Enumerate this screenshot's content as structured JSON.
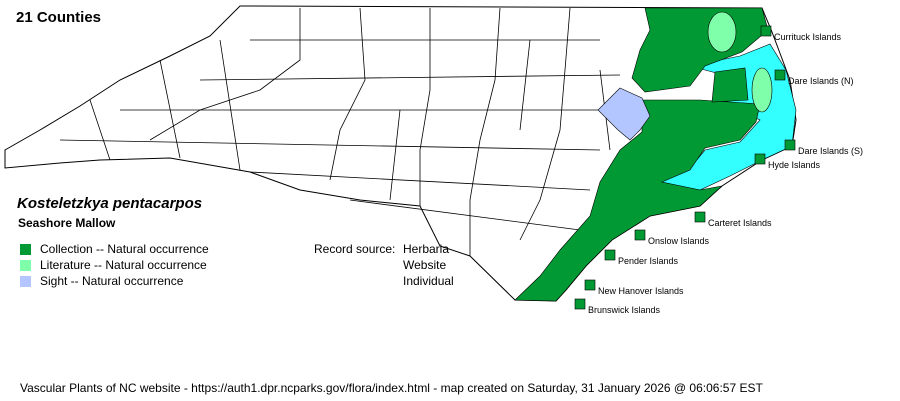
{
  "header": {
    "county_count": "21 Counties"
  },
  "species": {
    "scientific_name": "Kosteletzkya pentacarpos",
    "common_name": "Seashore Mallow"
  },
  "legend": [
    {
      "label": "Collection -- Natural occurrence",
      "color": "#009933"
    },
    {
      "label": "Literature -- Natural occurrence",
      "color": "#80ffaa"
    },
    {
      "label": "Sight -- Natural occurrence",
      "color": "#b3c6ff"
    }
  ],
  "record_source": {
    "label": "Record source:",
    "values": [
      "Herbaria",
      "Website",
      "Individual"
    ]
  },
  "islands": [
    "Currituck Islands",
    "Dare Islands (N)",
    "Dare Islands (S)",
    "Hyde Islands",
    "Carteret Islands",
    "Onslow Islands",
    "Pender Islands",
    "New Hanover Islands",
    "Brunswick Islands"
  ],
  "colors": {
    "collection": "#009933",
    "literature": "#80ffaa",
    "sight": "#b3c6ff",
    "water": "#33ffff"
  },
  "footer": "Vascular Plants of NC website - https://auth1.dpr.ncparks.gov/flora/index.html - map created on Saturday, 31 January 2026 @ 06:06:57 EST"
}
